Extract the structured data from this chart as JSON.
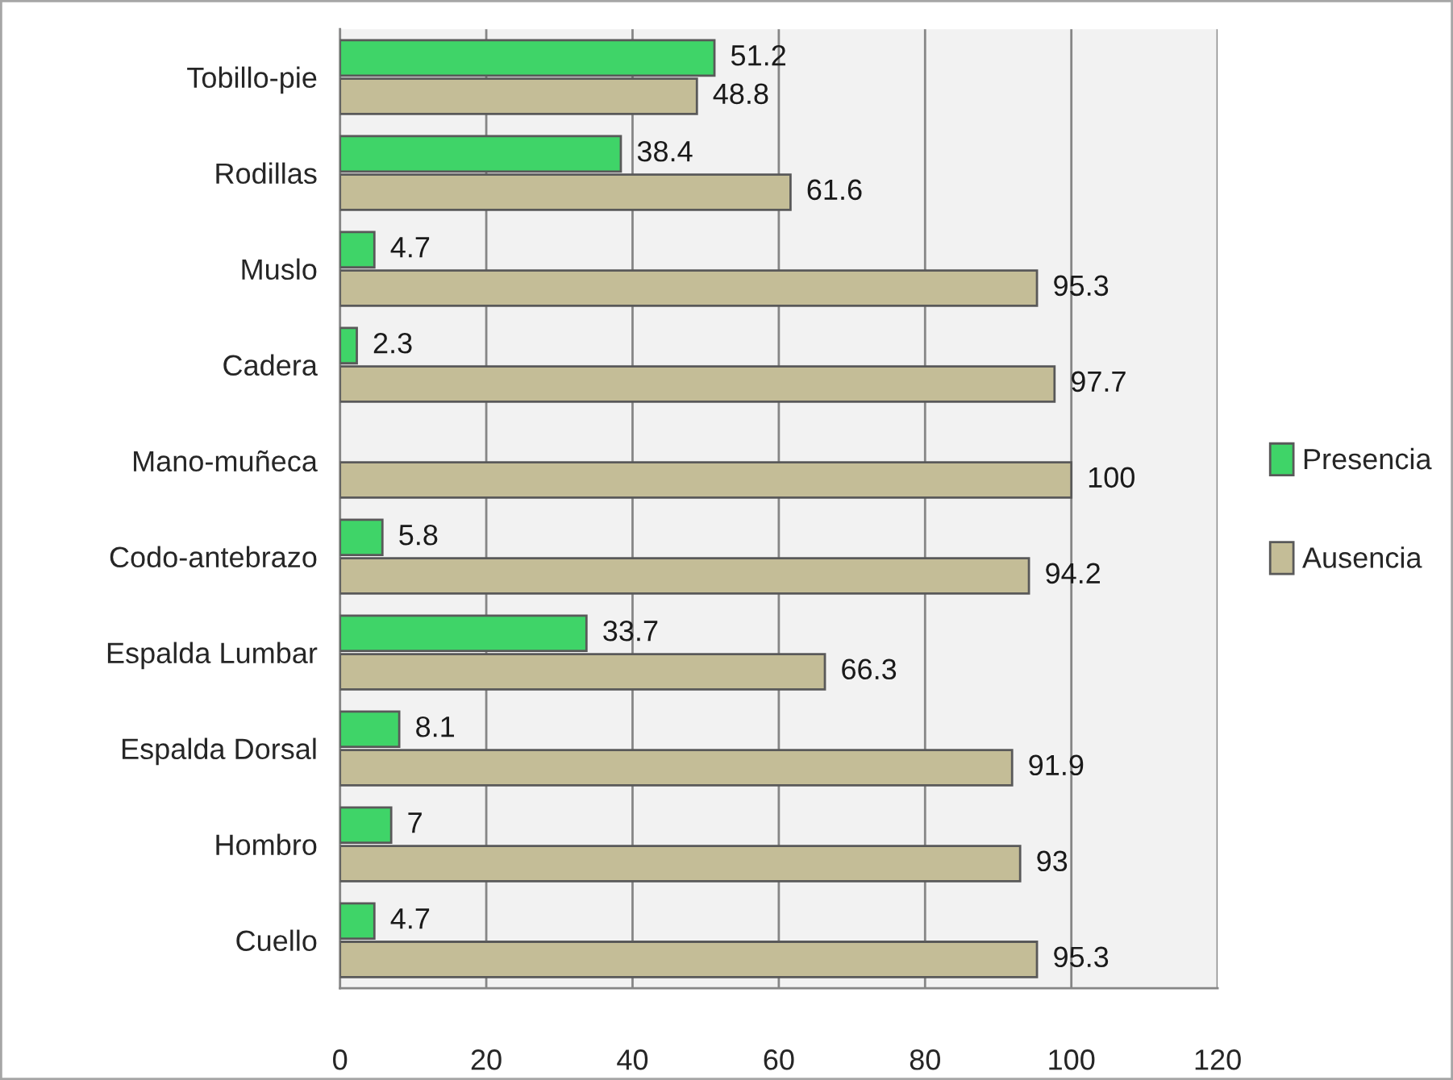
{
  "chart_data": {
    "type": "bar",
    "orientation": "horizontal",
    "categories": [
      "Tobillo-pie",
      "Rodillas",
      "Muslo",
      "Cadera",
      "Mano-muñeca",
      "Codo-antebrazo",
      "Espalda Lumbar",
      "Espalda Dorsal",
      "Hombro",
      "Cuello"
    ],
    "series": [
      {
        "name": "Presencia",
        "color": "#3fd468",
        "values": [
          51.2,
          38.4,
          4.7,
          2.3,
          null,
          5.8,
          33.7,
          8.1,
          7,
          4.7
        ],
        "value_labels": [
          "51.2",
          "38.4",
          "4.7",
          "2.3",
          null,
          "5.8",
          "33.7",
          "8.1",
          "7",
          "4.7"
        ]
      },
      {
        "name": "Ausencia",
        "color": "#c4bd97",
        "values": [
          48.8,
          61.6,
          95.3,
          97.7,
          100,
          94.2,
          66.3,
          91.9,
          93,
          95.3
        ],
        "value_labels": [
          "48.8",
          "61.6",
          "95.3",
          "97.7",
          "100",
          "94.2",
          "66.3",
          "91.9",
          "93",
          "95.3"
        ]
      }
    ],
    "xlim": [
      0,
      120
    ],
    "xticks": [
      0,
      20,
      40,
      60,
      80,
      100,
      120
    ],
    "grid": "x",
    "legend": "right"
  }
}
